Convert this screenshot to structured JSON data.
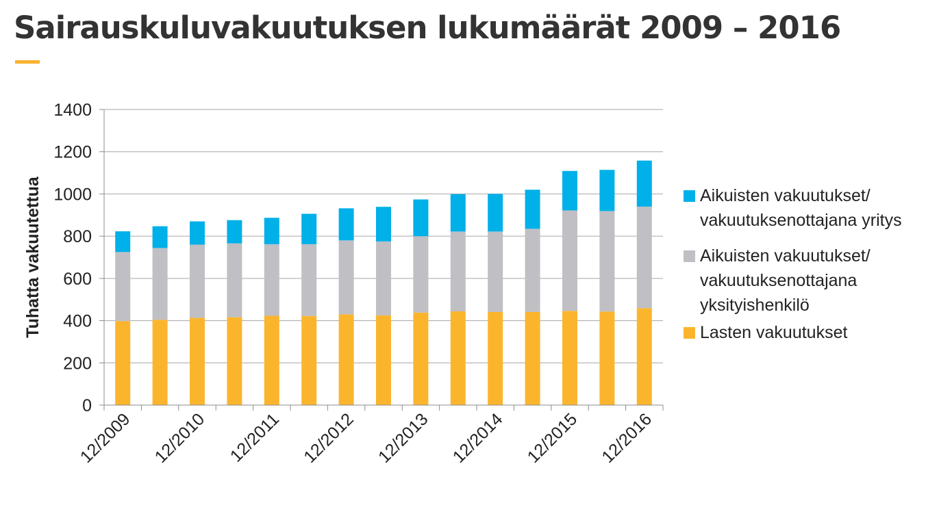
{
  "page": {
    "title": "Sairauskuluvakuutuksen lukumäärät 2009 – 2016",
    "accent_color": "#f9b233"
  },
  "chart_data": {
    "type": "bar",
    "stacked": true,
    "categories": [
      "12/2009",
      "6/2010",
      "12/2010",
      "6/2011",
      "12/2011",
      "6/2012",
      "12/2012",
      "6/2013",
      "12/2013",
      "6/2014",
      "12/2014",
      "6/2015",
      "12/2015",
      "6/2016",
      "12/2016"
    ],
    "tick_labels": [
      "12/2009",
      "12/2010",
      "12/2011",
      "12/2012",
      "12/2013",
      "12/2014",
      "12/2015",
      "12/2016"
    ],
    "series": [
      {
        "name": "Lasten vakuutukset",
        "color": "#fbb52d",
        "values": [
          398,
          404,
          413,
          416,
          423,
          422,
          430,
          425,
          438,
          444,
          441,
          441,
          446,
          443,
          459
        ]
      },
      {
        "name": "Aikuisten vakuutukset/ vakuutuksenottajana yksityishenkilö",
        "color": "#bfbfc4",
        "values": [
          327,
          340,
          347,
          350,
          339,
          340,
          350,
          350,
          362,
          378,
          381,
          394,
          476,
          476,
          481
        ]
      },
      {
        "name": "Aikuisten vakuutukset/ vakuutuksenottajana yritys",
        "color": "#00b0e8",
        "values": [
          98,
          103,
          110,
          110,
          125,
          144,
          152,
          164,
          174,
          177,
          178,
          185,
          187,
          195,
          218
        ]
      }
    ],
    "ylabel": "Tuhatta vakuutettua",
    "xlabel": "",
    "ylim": [
      0,
      1400
    ],
    "yticks": [
      0,
      200,
      400,
      600,
      800,
      1000,
      1200,
      1400
    ],
    "grid": true,
    "legend_position": "right"
  },
  "legend": [
    {
      "label_lines": [
        "Aikuisten vakuutukset/",
        "vakuutuksenottajana yritys"
      ],
      "color": "#00b0e8"
    },
    {
      "label_lines": [
        "Aikuisten vakuutukset/",
        "vakuutuksenottajana",
        "yksityishenkilö"
      ],
      "color": "#bfbfc4"
    },
    {
      "label_lines": [
        "Lasten vakuutukset"
      ],
      "color": "#fbb52d"
    }
  ]
}
